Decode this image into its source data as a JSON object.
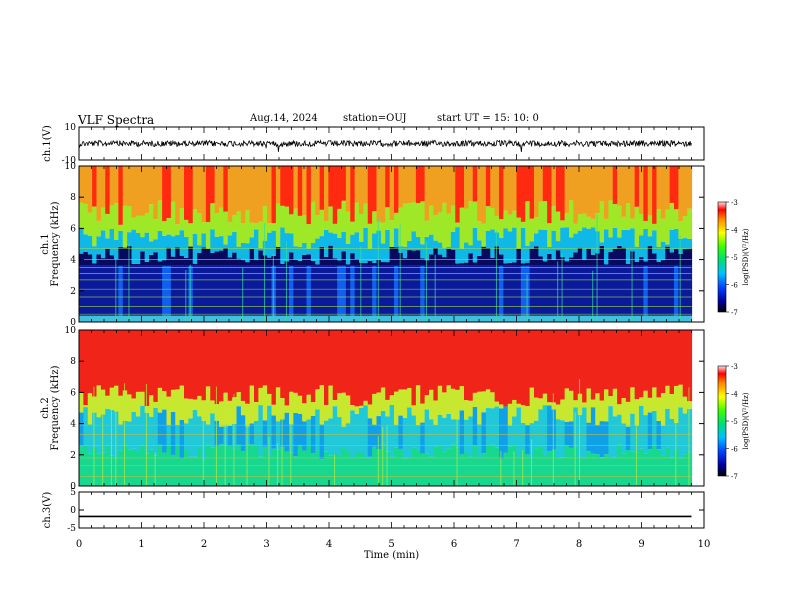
{
  "header": {
    "title": "VLF Spectra",
    "date": "Aug.14, 2024",
    "station": "station=OUJ",
    "start": "start  UT =   15: 10: 0"
  },
  "chart_data": [
    {
      "type": "line",
      "panel": "ch1-waveform",
      "ylabel": "ch.1(V)",
      "ylim": [
        -10,
        10
      ],
      "yticks": [
        "10",
        "-10"
      ],
      "xlim": [
        0,
        10
      ],
      "series": [
        {
          "x": [
            0,
            9.8
          ],
          "y": [
            0,
            0
          ]
        }
      ]
    },
    {
      "type": "heatmap",
      "panel": "ch1-spectrogram",
      "ylabel_line1": "ch.1",
      "ylabel_line2": "Frequency (kHz)",
      "ylim": [
        0,
        10
      ],
      "yticks": [
        "0",
        "2",
        "4",
        "6",
        "8",
        "10"
      ],
      "xlim": [
        0,
        10
      ],
      "data_xmax": 9.8,
      "colorbar": {
        "label": "log(PSD)(V²/Hz)",
        "range": [
          -7,
          -3
        ],
        "ticks": [
          "-3",
          "-4",
          "-5",
          "-6",
          "-7"
        ]
      }
    },
    {
      "type": "heatmap",
      "panel": "ch2-spectrogram",
      "ylabel_line1": "ch.2",
      "ylabel_line2": "Frequency (kHz)",
      "ylim": [
        0,
        10
      ],
      "yticks": [
        "0",
        "2",
        "4",
        "6",
        "8",
        "10"
      ],
      "xlim": [
        0,
        10
      ],
      "data_xmax": 9.8,
      "colorbar": {
        "label": "log(PSD)(V²/Hz)",
        "range": [
          -7,
          -3
        ],
        "ticks": [
          "-3",
          "-4",
          "-5",
          "-6",
          "-7"
        ]
      }
    },
    {
      "type": "line",
      "panel": "ch3-waveform",
      "ylabel": "ch.3(V)",
      "ylim": [
        -5,
        5
      ],
      "yticks": [
        "5",
        "0",
        "-5"
      ],
      "xlim": [
        0,
        10
      ],
      "series": [
        {
          "x": [
            0,
            9.8
          ],
          "y": [
            -1.8,
            -1.8
          ]
        }
      ]
    }
  ],
  "xaxis": {
    "label": "Time (min)",
    "ticks": [
      "0",
      "1",
      "2",
      "3",
      "4",
      "5",
      "6",
      "7",
      "8",
      "9",
      "10"
    ]
  }
}
